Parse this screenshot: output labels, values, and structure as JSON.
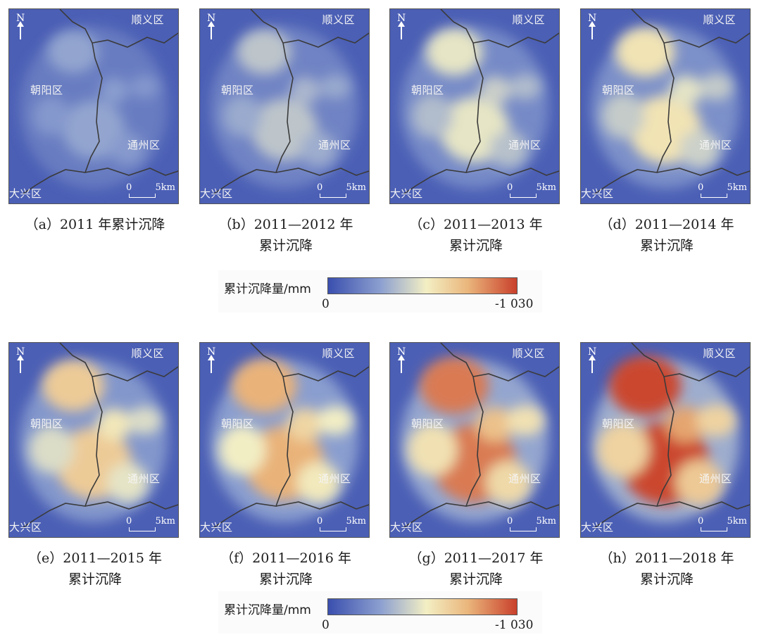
{
  "panels": [
    {
      "caption_line1": "（a）2011 年累计沉降",
      "caption_line2": "",
      "intensity": 0.1
    },
    {
      "caption_line1": "（b）2011—2012 年",
      "caption_line2": "累计沉降",
      "intensity": 0.22
    },
    {
      "caption_line1": "（c）2011—2013 年",
      "caption_line2": "累计沉降",
      "intensity": 0.34
    },
    {
      "caption_line1": "（d）2011—2014 年",
      "caption_line2": "累计沉降",
      "intensity": 0.44
    },
    {
      "caption_line1": "（e）2011—2015 年",
      "caption_line2": "累计沉降",
      "intensity": 0.56
    },
    {
      "caption_line1": "（f）2011—2016 年",
      "caption_line2": "累计沉降",
      "intensity": 0.68
    },
    {
      "caption_line1": "（g）2011—2017 年",
      "caption_line2": "累计沉降",
      "intensity": 0.82
    },
    {
      "caption_line1": "（h）2011—2018 年",
      "caption_line2": "累计沉降",
      "intensity": 0.95
    }
  ],
  "map_labels": {
    "shunyi": "顺义区",
    "chaoyang": "朝阳区",
    "tongzhou": "通州区",
    "daxing": "大兴区",
    "north": "N",
    "scale_zero": "0",
    "scale_five": "5km"
  },
  "legend": {
    "title": "累计沉降量/mm",
    "min_label": "0",
    "max_label": "-1 030",
    "colors": [
      "#3a4fae",
      "#8da0d0",
      "#f3efc4",
      "#eab67c",
      "#c9402b"
    ]
  }
}
